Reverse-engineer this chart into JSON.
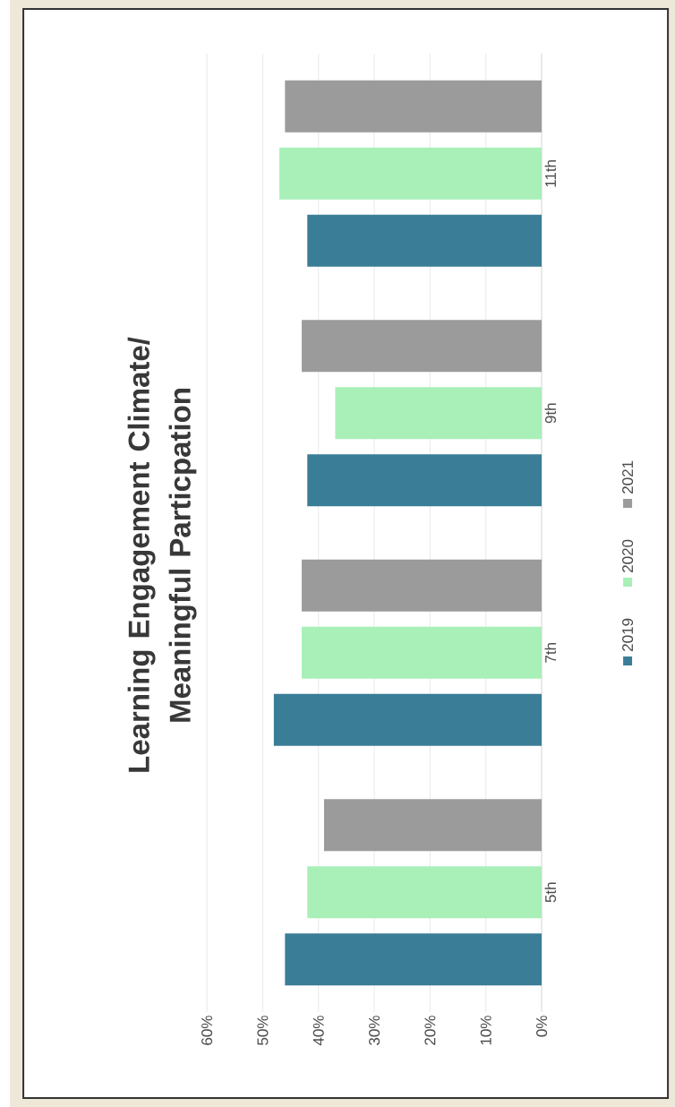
{
  "chart_data": {
    "type": "bar",
    "orientation": "horizontal",
    "title": "Learning Engagement Climate/ Meaningful Particpation",
    "categories": [
      "11th",
      "9th",
      "7th",
      "5th"
    ],
    "series": [
      {
        "name": "2019",
        "color": "#3a7d97",
        "values": [
          42,
          42,
          48,
          46
        ]
      },
      {
        "name": "2020",
        "color": "#a8efb8",
        "values": [
          47,
          37,
          43,
          42
        ]
      },
      {
        "name": "2021",
        "color": "#9b9b9b",
        "values": [
          46,
          43,
          43,
          39
        ]
      }
    ],
    "xlim": [
      60,
      0
    ],
    "xticks": [
      {
        "value": 0,
        "label": "0%"
      },
      {
        "value": 10,
        "label": "10%"
      },
      {
        "value": 20,
        "label": "20%"
      },
      {
        "value": 30,
        "label": "30%"
      },
      {
        "value": 40,
        "label": "40%"
      },
      {
        "value": 50,
        "label": "50%"
      },
      {
        "value": 60,
        "label": "60%"
      }
    ],
    "grid": "x",
    "legend": "right"
  }
}
